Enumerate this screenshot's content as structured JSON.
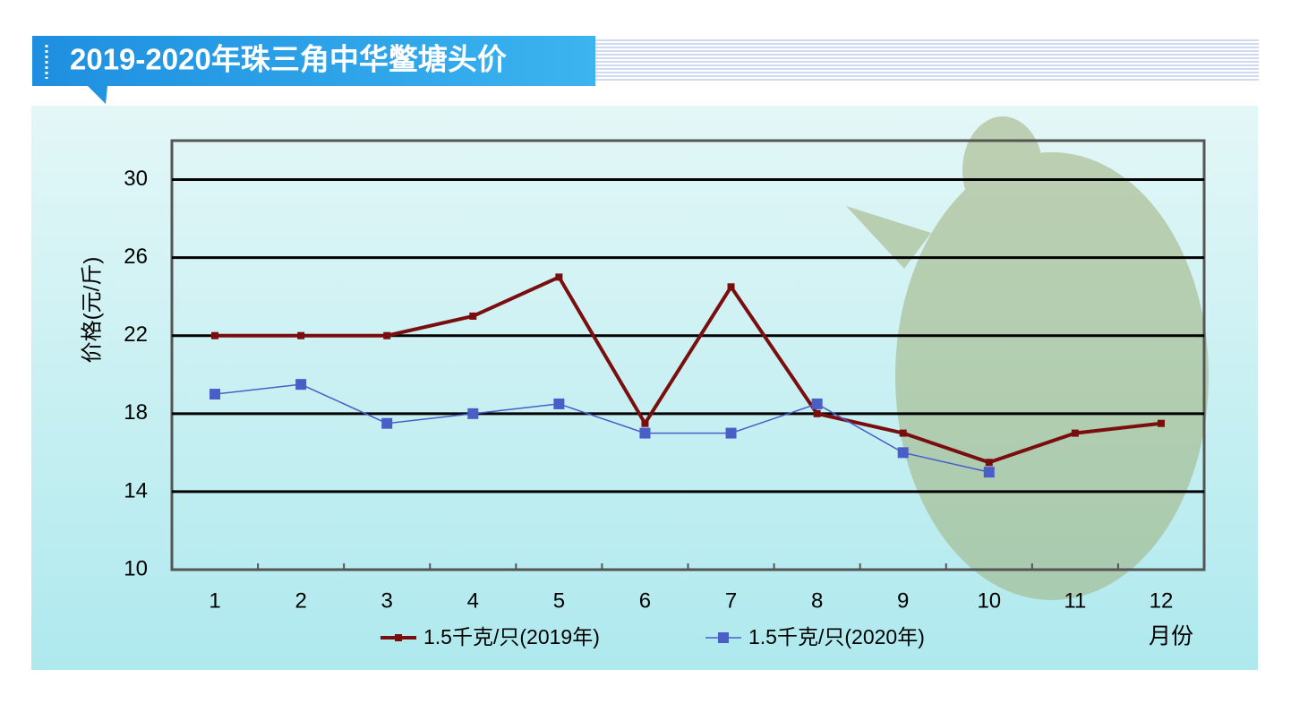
{
  "chart_data": {
    "type": "line",
    "title": "2019-2020年珠三角中华鳖塘头价",
    "y_label": "价格(元/斤)",
    "x_label": "月份",
    "categories": [
      "1",
      "2",
      "3",
      "4",
      "5",
      "6",
      "7",
      "8",
      "9",
      "10",
      "11",
      "12"
    ],
    "series": [
      {
        "name": "1.5千克/只(2019年)",
        "color": "#7a0e0e",
        "values": [
          22,
          22,
          22,
          23,
          25,
          17.5,
          24.5,
          18,
          17,
          15.5,
          17,
          17.5
        ]
      },
      {
        "name": "1.5千克/只(2020年)",
        "color": "#4a5ec8",
        "values": [
          19,
          19.5,
          17.5,
          18,
          18.5,
          17,
          17,
          18.5,
          16,
          15,
          null,
          null
        ]
      }
    ],
    "ylim": [
      10,
      32
    ],
    "yticks": [
      10,
      14,
      18,
      22,
      26,
      30
    ],
    "grid": true
  }
}
